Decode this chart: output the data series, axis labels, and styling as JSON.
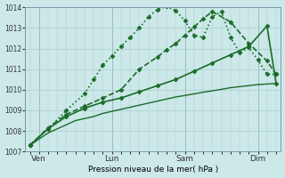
{
  "bg_color": "#cce8e8",
  "grid_color": "#aacccc",
  "line_color": "#1a6b2a",
  "ylabel": "Pression niveau de la mer( hPa )",
  "ylim": [
    1007,
    1014
  ],
  "yticks": [
    1007,
    1008,
    1009,
    1010,
    1011,
    1012,
    1013,
    1014
  ],
  "xtick_labels": [
    "Ven",
    "Lun",
    "Sam",
    "Dim"
  ],
  "xtick_pos": [
    1,
    9,
    17,
    25
  ],
  "total_x_pts": 28,
  "series": [
    {
      "x": [
        0,
        1,
        2,
        3,
        4,
        5,
        6,
        7,
        8,
        9,
        10,
        11,
        12,
        13,
        14,
        15,
        16,
        17,
        18,
        19,
        20,
        21,
        22,
        23,
        24,
        25,
        26,
        27
      ],
      "y": [
        1007.3,
        1007.6,
        1007.9,
        1008.1,
        1008.3,
        1008.5,
        1008.6,
        1008.7,
        1008.85,
        1008.95,
        1009.05,
        1009.15,
        1009.25,
        1009.35,
        1009.45,
        1009.55,
        1009.65,
        1009.72,
        1009.8,
        1009.88,
        1009.95,
        1010.02,
        1010.1,
        1010.15,
        1010.2,
        1010.25,
        1010.28,
        1010.3
      ],
      "style": "-",
      "marker": "",
      "lw": 1.0,
      "ms": 0,
      "dashes": []
    },
    {
      "x": [
        0,
        2,
        4,
        6,
        8,
        10,
        12,
        14,
        16,
        18,
        20,
        22,
        24,
        26,
        27
      ],
      "y": [
        1007.3,
        1008.1,
        1008.7,
        1009.1,
        1009.4,
        1009.6,
        1009.9,
        1010.2,
        1010.5,
        1010.9,
        1011.3,
        1011.7,
        1012.1,
        1013.1,
        1010.3
      ],
      "style": "-",
      "marker": "D",
      "lw": 1.2,
      "ms": 2.5,
      "dashes": []
    },
    {
      "x": [
        0,
        2,
        4,
        6,
        8,
        10,
        12,
        14,
        15,
        16,
        17,
        18,
        19,
        20,
        22,
        24,
        26,
        27
      ],
      "y": [
        1007.3,
        1008.15,
        1008.8,
        1009.2,
        1009.6,
        1010.0,
        1011.0,
        1011.6,
        1011.95,
        1012.25,
        1012.65,
        1013.05,
        1013.45,
        1013.8,
        1013.3,
        1012.25,
        1011.4,
        1010.75
      ],
      "style": "--",
      "marker": "D",
      "lw": 1.2,
      "ms": 2.5,
      "dashes": [
        4,
        2
      ]
    },
    {
      "x": [
        0,
        2,
        4,
        6,
        7,
        8,
        9,
        10,
        11,
        12,
        13,
        14,
        15,
        16,
        17,
        18,
        19,
        20,
        21,
        22,
        23,
        24,
        25,
        26,
        27
      ],
      "y": [
        1007.3,
        1008.1,
        1009.0,
        1009.8,
        1010.5,
        1011.2,
        1011.65,
        1012.1,
        1012.55,
        1013.0,
        1013.55,
        1013.9,
        1014.05,
        1013.85,
        1013.35,
        1012.65,
        1012.55,
        1013.55,
        1013.8,
        1012.55,
        1011.8,
        1012.05,
        1011.45,
        1010.75,
        1010.75
      ],
      "style": ":",
      "marker": "D",
      "lw": 1.2,
      "ms": 2.5,
      "dashes": [
        1,
        2
      ]
    }
  ],
  "vlines_x": [
    1,
    9,
    17,
    25
  ],
  "xlim": [
    -0.5,
    27.5
  ]
}
